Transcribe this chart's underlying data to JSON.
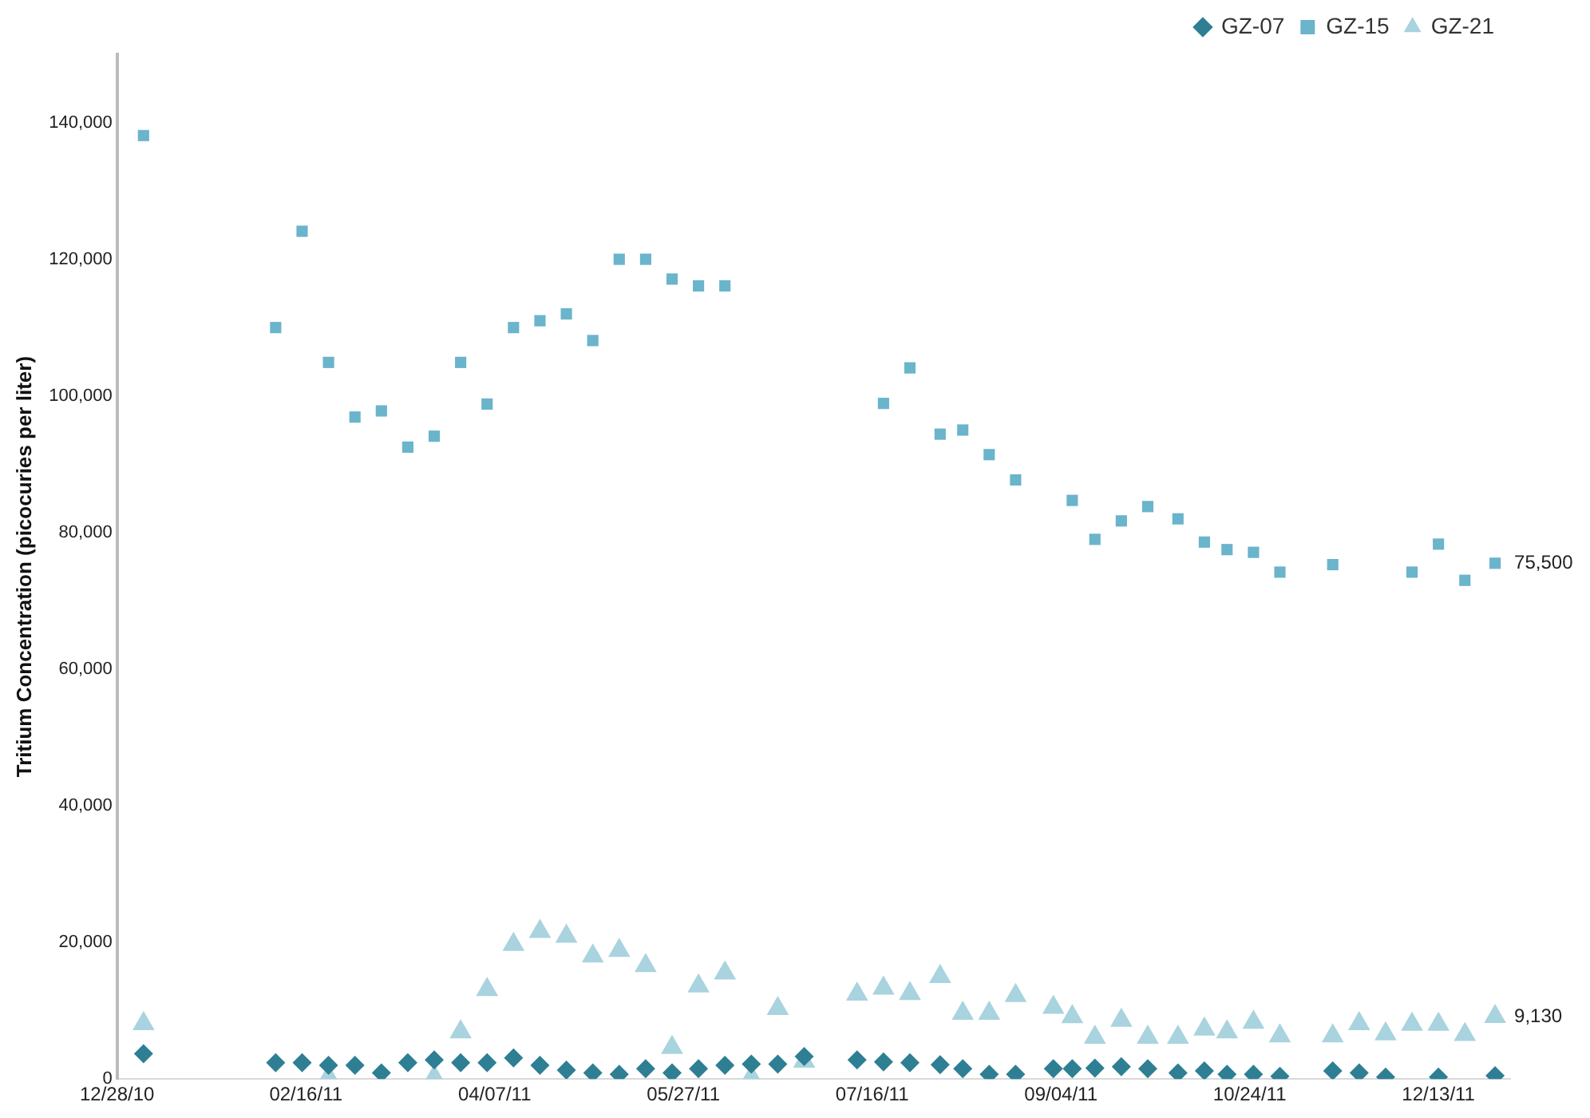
{
  "chart_data": {
    "type": "scatter",
    "ylabel": "Tritium Concentration (picocuries per liter)",
    "legend": "top right",
    "grid": false,
    "xlim": [
      "2010-12-28",
      "2012-01-01"
    ],
    "xticks": [
      {
        "value": "2010-12-28",
        "label": "12/28/10"
      },
      {
        "value": "2011-02-16",
        "label": "02/16/11"
      },
      {
        "value": "2011-04-07",
        "label": "04/07/11"
      },
      {
        "value": "2011-05-27",
        "label": "05/27/11"
      },
      {
        "value": "2011-07-16",
        "label": "07/16/11"
      },
      {
        "value": "2011-09-04",
        "label": "09/04/11"
      },
      {
        "value": "2011-10-24",
        "label": "10/24/11"
      },
      {
        "value": "2011-12-13",
        "label": "12/13/11"
      }
    ],
    "ylim": [
      0,
      150000
    ],
    "yticks": [
      0,
      {
        "value": 20000,
        "label": "20,000"
      },
      {
        "value": 40000,
        "label": "40,000"
      },
      {
        "value": 60000,
        "label": "60,000"
      },
      {
        "value": 80000,
        "label": "80,000"
      },
      {
        "value": 100000,
        "label": "100,000"
      },
      {
        "value": 120000,
        "label": "120,000"
      },
      {
        "value": 140000,
        "label": "140,000"
      }
    ],
    "annotations": [
      {
        "text": "75,500",
        "x": "2011-12-28",
        "y": 75500
      },
      {
        "text": "9,130",
        "x": "2011-12-28",
        "y": 9130
      }
    ],
    "series": [
      {
        "name": "GZ-07",
        "color": "#2e7f93",
        "marker": "diamond",
        "x": [
          "2011-01-04",
          "2011-02-08",
          "2011-02-15",
          "2011-02-22",
          "2011-03-01",
          "2011-03-08",
          "2011-03-15",
          "2011-03-22",
          "2011-03-29",
          "2011-04-05",
          "2011-04-12",
          "2011-04-19",
          "2011-04-26",
          "2011-05-03",
          "2011-05-10",
          "2011-05-17",
          "2011-05-24",
          "2011-05-31",
          "2011-06-07",
          "2011-06-14",
          "2011-06-21",
          "2011-06-28",
          "2011-07-12",
          "2011-07-19",
          "2011-07-26",
          "2011-08-03",
          "2011-08-09",
          "2011-08-16",
          "2011-08-23",
          "2011-09-02",
          "2011-09-07",
          "2011-09-13",
          "2011-09-20",
          "2011-09-27",
          "2011-10-05",
          "2011-10-12",
          "2011-10-18",
          "2011-10-25",
          "2011-11-01",
          "2011-11-15",
          "2011-11-22",
          "2011-11-29",
          "2011-12-13",
          "2011-12-28"
        ],
        "values": [
          3700,
          2400,
          2400,
          2000,
          2000,
          900,
          2400,
          2800,
          2400,
          2400,
          3100,
          2000,
          1300,
          900,
          700,
          1500,
          900,
          1500,
          2000,
          2200,
          2200,
          3300,
          2800,
          2500,
          2400,
          2100,
          1500,
          700,
          700,
          1500,
          1500,
          1600,
          1800,
          1500,
          900,
          1200,
          700,
          700,
          400,
          1200,
          900,
          300,
          300,
          500
        ]
      },
      {
        "name": "GZ-15",
        "color": "#6ab4cc",
        "marker": "square",
        "x": [
          "2011-01-04",
          "2011-02-08",
          "2011-02-15",
          "2011-02-22",
          "2011-03-01",
          "2011-03-08",
          "2011-03-15",
          "2011-03-22",
          "2011-03-29",
          "2011-04-05",
          "2011-04-12",
          "2011-04-19",
          "2011-04-26",
          "2011-05-03",
          "2011-05-10",
          "2011-05-17",
          "2011-05-24",
          "2011-05-31",
          "2011-06-07",
          "2011-07-19",
          "2011-07-26",
          "2011-08-03",
          "2011-08-09",
          "2011-08-16",
          "2011-08-23",
          "2011-09-07",
          "2011-09-13",
          "2011-09-20",
          "2011-09-27",
          "2011-10-05",
          "2011-10-12",
          "2011-10-18",
          "2011-10-25",
          "2011-11-01",
          "2011-11-15",
          "2011-12-06",
          "2011-12-13",
          "2011-12-20",
          "2011-12-28"
        ],
        "values": [
          138100,
          110000,
          124100,
          104900,
          96900,
          97800,
          92500,
          94100,
          104900,
          98800,
          110000,
          111000,
          112000,
          108100,
          120000,
          120000,
          117100,
          116100,
          116100,
          98900,
          104100,
          94400,
          95000,
          91400,
          87700,
          84700,
          79000,
          81700,
          83800,
          82000,
          78600,
          77500,
          77100,
          74200,
          75300,
          74200,
          78300,
          73000,
          75500
        ]
      },
      {
        "name": "GZ-21",
        "color": "#a9d3de",
        "marker": "triangle",
        "x": [
          "2011-01-04",
          "2011-02-22",
          "2011-03-22",
          "2011-03-29",
          "2011-04-05",
          "2011-04-12",
          "2011-04-19",
          "2011-04-26",
          "2011-05-03",
          "2011-05-10",
          "2011-05-17",
          "2011-05-24",
          "2011-05-31",
          "2011-06-07",
          "2011-06-14",
          "2011-06-21",
          "2011-06-28",
          "2011-07-12",
          "2011-07-19",
          "2011-07-26",
          "2011-08-03",
          "2011-08-09",
          "2011-08-16",
          "2011-08-23",
          "2011-09-02",
          "2011-09-07",
          "2011-09-13",
          "2011-09-20",
          "2011-09-27",
          "2011-10-05",
          "2011-10-12",
          "2011-10-18",
          "2011-10-25",
          "2011-11-01",
          "2011-11-15",
          "2011-11-22",
          "2011-11-29",
          "2011-12-06",
          "2011-12-13",
          "2011-12-20",
          "2011-12-28"
        ],
        "values": [
          8100,
          300,
          300,
          6900,
          13100,
          19700,
          21600,
          20900,
          18000,
          18800,
          16600,
          4600,
          13600,
          15500,
          300,
          10300,
          2600,
          12400,
          13300,
          12500,
          15000,
          9600,
          9600,
          12200,
          10500,
          9100,
          6100,
          8600,
          6100,
          6100,
          7300,
          6900,
          8300,
          6300,
          6300,
          8100,
          6600,
          8000,
          8000,
          6500,
          9130
        ]
      }
    ]
  }
}
